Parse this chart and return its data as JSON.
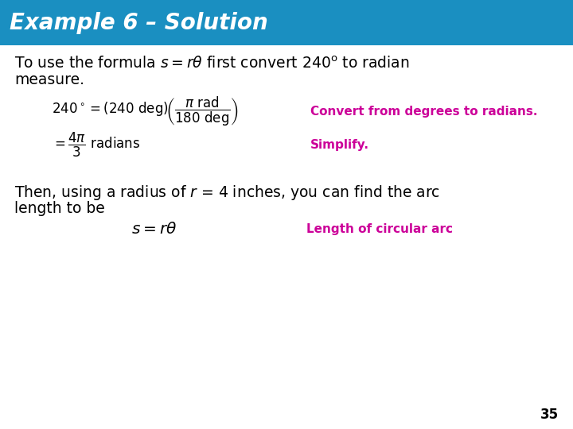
{
  "title": "Example 6 – Solution",
  "title_bg_color": "#1a8fc1",
  "title_text_color": "#ffffff",
  "body_bg_color": "#ffffff",
  "body_text_color": "#000000",
  "annotation_color": "#cc0099",
  "page_number": "35",
  "eq1_note": "Convert from degrees to radians.",
  "eq2_note": "Simplify.",
  "eq3_note": "Length of circular arc",
  "title_fontsize": 20,
  "body_fontsize": 13.5,
  "eq_fontsize": 12,
  "annot_fontsize": 11
}
